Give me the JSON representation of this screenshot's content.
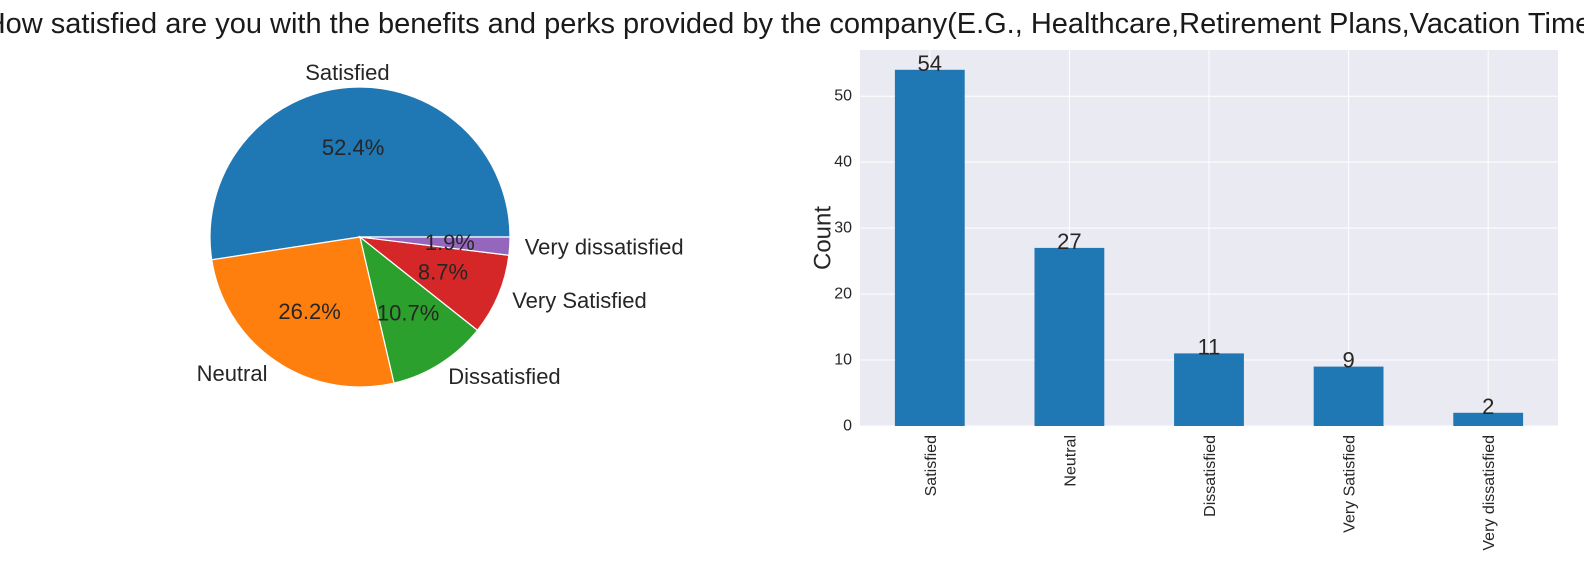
{
  "figure": {
    "title": "How satisfied are you with the benefits and perks provided by the company(E.G., Healthcare,Retirement Plans,Vacation Time,"
  },
  "colors": {
    "pie": [
      "#1f77b4",
      "#ff7f0e",
      "#2ca02c",
      "#d62728",
      "#9467bd"
    ],
    "bar": "#1f77b4",
    "axes_background": "#eaeaf2",
    "grid": "#ffffff"
  },
  "chart_data": [
    {
      "type": "pie",
      "labels": [
        "Satisfied",
        "Neutral",
        "Dissatisfied",
        "Very Satisfied",
        "Very dissatisfied"
      ],
      "values": [
        54,
        27,
        11,
        9,
        2
      ],
      "percent_labels": [
        "52.4%",
        "26.2%",
        "10.7%",
        "8.7%",
        "1.9%"
      ],
      "start_angle": 0,
      "direction": "counterclockwise"
    },
    {
      "type": "bar",
      "categories": [
        "Satisfied",
        "Neutral",
        "Dissatisfied",
        "Very Satisfied",
        "Very dissatisfied"
      ],
      "values": [
        54,
        27,
        11,
        9,
        2
      ],
      "value_labels": [
        "54",
        "27",
        "11",
        "9",
        "2"
      ],
      "ylabel": "Count",
      "xlabel": "",
      "ylim": [
        0,
        57
      ],
      "yticks": [
        0,
        10,
        20,
        30,
        40,
        50
      ],
      "grid": true,
      "xtick_rotation": 90
    }
  ]
}
